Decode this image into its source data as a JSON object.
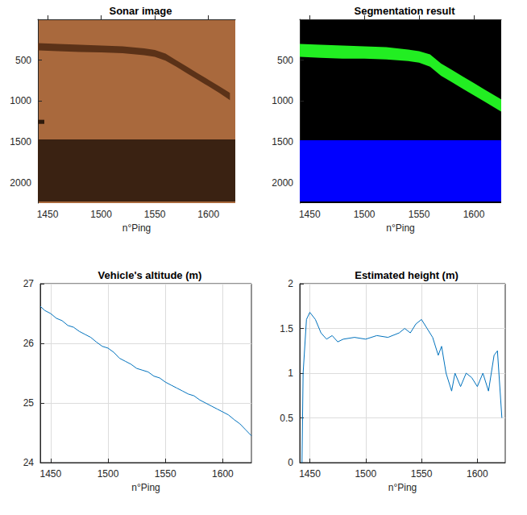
{
  "chart_data": [
    {
      "type": "band",
      "title": "Sonar image",
      "xlabel": "n°Ping",
      "color": "#a9693d",
      "xlim": [
        1441,
        1625
      ],
      "xticks": [
        1450,
        1500,
        1550,
        1600
      ],
      "ylim": [
        2250,
        0
      ],
      "yticks": [
        500,
        1000,
        1500,
        2000
      ],
      "grid": false,
      "series": [
        {
          "color": "#5b3218",
          "x": [
            1441,
            1460,
            1480,
            1500,
            1520,
            1540,
            1550,
            1560,
            1570,
            1580,
            1590,
            1600,
            1610,
            1620
          ],
          "lower": [
            290,
            300,
            310,
            320,
            330,
            355,
            375,
            420,
            500,
            580,
            660,
            740,
            820,
            900
          ],
          "upper": [
            380,
            390,
            400,
            405,
            415,
            440,
            460,
            505,
            580,
            660,
            740,
            820,
            900,
            990
          ]
        },
        {
          "color": "#3a2212",
          "x": [
            1441,
            1625
          ],
          "lower": [
            1470,
            1470
          ],
          "upper": [
            2230,
            2230
          ]
        },
        {
          "color": "#2e1a0c",
          "x": [
            1441,
            1447
          ],
          "lower": [
            1230,
            1230
          ],
          "upper": [
            1280,
            1280
          ]
        }
      ]
    },
    {
      "type": "band",
      "title": "Segmentation result",
      "xlabel": "n°Ping",
      "color": "#000000",
      "xlim": [
        1441,
        1625
      ],
      "xticks": [
        1450,
        1500,
        1550,
        1600
      ],
      "ylim": [
        2250,
        0
      ],
      "yticks": [
        500,
        1000,
        1500,
        2000
      ],
      "grid": false,
      "series": [
        {
          "color": "#22ee22",
          "x": [
            1441,
            1460,
            1480,
            1500,
            1520,
            1540,
            1550,
            1560,
            1570,
            1580,
            1590,
            1600,
            1610,
            1625
          ],
          "lower": [
            300,
            310,
            320,
            330,
            340,
            370,
            390,
            430,
            540,
            620,
            700,
            780,
            860,
            980
          ],
          "upper": [
            460,
            470,
            480,
            480,
            490,
            510,
            530,
            580,
            690,
            770,
            850,
            930,
            1010,
            1130
          ]
        },
        {
          "color": "#0000ff",
          "x": [
            1441,
            1625
          ],
          "lower": [
            1480,
            1480
          ],
          "upper": [
            2230,
            2230
          ]
        }
      ]
    },
    {
      "type": "line",
      "title": "Vehicle's altitude (m)",
      "xlabel": "n°Ping",
      "color": "#0072bd",
      "xlim": [
        1441,
        1625
      ],
      "xticks": [
        1450,
        1500,
        1550,
        1600
      ],
      "ylim": [
        24,
        27
      ],
      "yticks": [
        24,
        25,
        26,
        27
      ],
      "grid": true,
      "x": [
        1441,
        1445,
        1450,
        1455,
        1460,
        1465,
        1470,
        1475,
        1480,
        1485,
        1490,
        1495,
        1500,
        1505,
        1510,
        1515,
        1520,
        1525,
        1530,
        1535,
        1540,
        1545,
        1550,
        1555,
        1560,
        1565,
        1570,
        1575,
        1580,
        1585,
        1590,
        1595,
        1600,
        1605,
        1610,
        1615,
        1620,
        1625
      ],
      "values": [
        26.62,
        26.55,
        26.5,
        26.42,
        26.38,
        26.3,
        26.27,
        26.2,
        26.15,
        26.1,
        26.02,
        25.95,
        25.92,
        25.85,
        25.75,
        25.7,
        25.65,
        25.58,
        25.55,
        25.52,
        25.45,
        25.42,
        25.35,
        25.3,
        25.25,
        25.2,
        25.15,
        25.12,
        25.05,
        25.0,
        24.95,
        24.9,
        24.85,
        24.8,
        24.72,
        24.65,
        24.55,
        24.45
      ]
    },
    {
      "type": "line",
      "title": "Estimated height (m)",
      "xlabel": "n°Ping",
      "color": "#0072bd",
      "xlim": [
        1441,
        1625
      ],
      "xticks": [
        1450,
        1500,
        1550,
        1600
      ],
      "ylim": [
        0,
        2
      ],
      "yticks": [
        0,
        0.5,
        1,
        1.5,
        2
      ],
      "grid": true,
      "x": [
        1443,
        1444,
        1447,
        1450,
        1455,
        1460,
        1465,
        1470,
        1475,
        1480,
        1490,
        1500,
        1510,
        1520,
        1530,
        1535,
        1540,
        1545,
        1550,
        1555,
        1560,
        1565,
        1568,
        1572,
        1577,
        1580,
        1585,
        1590,
        1595,
        1600,
        1605,
        1610,
        1615,
        1618,
        1622
      ],
      "values": [
        0,
        1.0,
        1.6,
        1.68,
        1.6,
        1.45,
        1.38,
        1.42,
        1.35,
        1.38,
        1.4,
        1.38,
        1.42,
        1.4,
        1.45,
        1.5,
        1.45,
        1.55,
        1.6,
        1.5,
        1.4,
        1.2,
        1.3,
        1.0,
        0.8,
        1.0,
        0.85,
        1.0,
        0.95,
        0.85,
        1.0,
        0.8,
        1.2,
        1.25,
        0.5
      ]
    }
  ]
}
